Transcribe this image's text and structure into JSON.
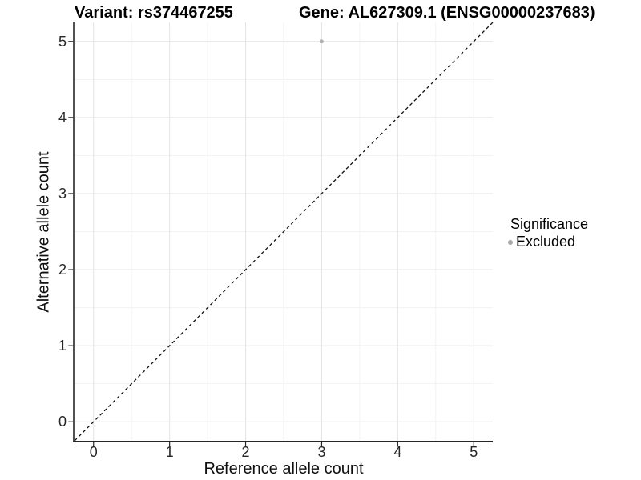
{
  "chart_data": {
    "type": "scatter",
    "titles": {
      "left": "Variant: rs374467255",
      "right": "Gene: AL627309.1 (ENSG00000237683)"
    },
    "xlabel": "Reference allele count",
    "ylabel": "Alternative allele count",
    "xlim": [
      -0.25,
      5.25
    ],
    "ylim": [
      -0.25,
      5.25
    ],
    "x_ticks": [
      0,
      1,
      2,
      3,
      4,
      5
    ],
    "y_ticks": [
      0,
      1,
      2,
      3,
      4,
      5
    ],
    "x_minor_ticks": [
      0.5,
      1.5,
      2.5,
      3.5,
      4.5
    ],
    "y_minor_ticks": [
      0.5,
      1.5,
      2.5,
      3.5,
      4.5
    ],
    "grid": "major+minor",
    "reference_line": {
      "type": "identity y=x",
      "style": "dashed",
      "color": "#111111"
    },
    "series": [
      {
        "name": "Excluded",
        "color": "#b0b0b0",
        "points": [
          [
            3,
            5
          ]
        ]
      }
    ],
    "legend": {
      "title": "Significance",
      "position": "right",
      "items": [
        {
          "label": "Excluded",
          "color": "#b0b0b0",
          "marker": "circle"
        }
      ]
    },
    "colors": {
      "grid_major": "#e4e4e4",
      "grid_minor": "#f2f2f2",
      "axis": "#262626",
      "tick_label": "#262626",
      "point": "#b0b0b0"
    }
  }
}
